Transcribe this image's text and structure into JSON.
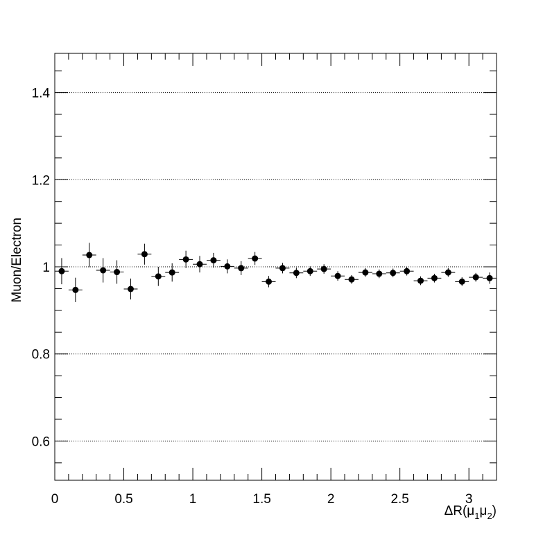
{
  "chart_data": {
    "type": "scatter",
    "title": "",
    "xlabel": {
      "base": "ΔR(μ",
      "sub1": "1",
      "mid": "μ",
      "sub2": "2",
      "end": ")"
    },
    "ylabel": "Muon/Electron",
    "xlim": [
      0,
      3.2
    ],
    "ylim": [
      0.51,
      1.49
    ],
    "x_major_ticks": [
      0,
      0.5,
      1,
      1.5,
      2,
      2.5,
      3
    ],
    "x_tick_labels": [
      "0",
      "0.5",
      "1",
      "1.5",
      "2",
      "2.5",
      "3"
    ],
    "y_major_ticks": [
      0.6,
      0.8,
      1.0,
      1.2,
      1.4
    ],
    "y_tick_labels": [
      "0.6",
      "0.8",
      "1",
      "1.2",
      "1.4"
    ],
    "grid": {
      "horizontal": true,
      "vertical": false,
      "style": "dotted"
    },
    "bin_half_width": 0.05,
    "series": [
      {
        "x": [
          0.05,
          0.15,
          0.25,
          0.35,
          0.45,
          0.55,
          0.65,
          0.75,
          0.85,
          0.95,
          1.05,
          1.15,
          1.25,
          1.35,
          1.45,
          1.55,
          1.65,
          1.75,
          1.85,
          1.95,
          2.05,
          2.15,
          2.25,
          2.35,
          2.45,
          2.55,
          2.65,
          2.75,
          2.85,
          2.95,
          3.05,
          3.15
        ],
        "y": [
          0.99,
          0.947,
          1.027,
          0.992,
          0.988,
          0.949,
          1.029,
          0.978,
          0.987,
          1.017,
          1.006,
          1.015,
          1.001,
          0.997,
          1.019,
          0.966,
          0.997,
          0.986,
          0.99,
          0.995,
          0.979,
          0.971,
          0.987,
          0.984,
          0.986,
          0.99,
          0.968,
          0.974,
          0.987,
          0.966,
          0.976,
          0.974
        ],
        "yerr": [
          0.03,
          0.028,
          0.028,
          0.028,
          0.027,
          0.024,
          0.024,
          0.022,
          0.021,
          0.02,
          0.019,
          0.017,
          0.016,
          0.016,
          0.015,
          0.013,
          0.012,
          0.012,
          0.011,
          0.011,
          0.011,
          0.01,
          0.01,
          0.01,
          0.01,
          0.01,
          0.01,
          0.01,
          0.01,
          0.01,
          0.01,
          0.013
        ]
      }
    ]
  }
}
